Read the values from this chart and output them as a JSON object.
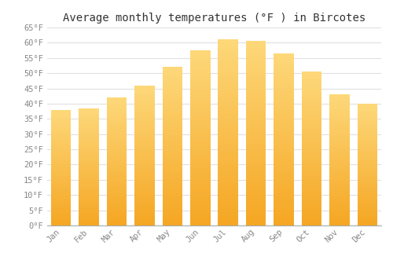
{
  "title": "Average monthly temperatures (°F ) in Bircotes",
  "months": [
    "Jan",
    "Feb",
    "Mar",
    "Apr",
    "May",
    "Jun",
    "Jul",
    "Aug",
    "Sep",
    "Oct",
    "Nov",
    "Dec"
  ],
  "values": [
    38.0,
    38.5,
    42.0,
    46.0,
    52.0,
    57.5,
    61.0,
    60.5,
    56.5,
    50.5,
    43.0,
    40.0
  ],
  "bar_color_bottom": "#F5A623",
  "bar_color_top": "#FDD87A",
  "ylim": [
    0,
    65
  ],
  "yticks": [
    0,
    5,
    10,
    15,
    20,
    25,
    30,
    35,
    40,
    45,
    50,
    55,
    60,
    65
  ],
  "background_color": "#FFFFFF",
  "grid_color": "#E0E0E0",
  "title_fontsize": 10,
  "tick_fontsize": 7.5,
  "font_family": "monospace",
  "tick_color": "#888888"
}
